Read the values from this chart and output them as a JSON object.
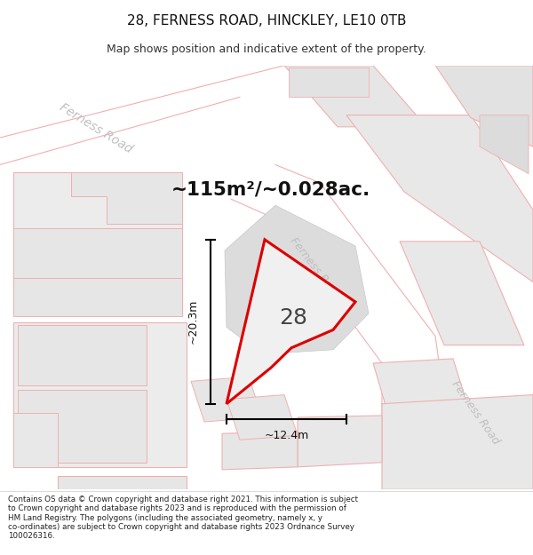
{
  "title": "28, FERNESS ROAD, HINCKLEY, LE10 0TB",
  "subtitle": "Map shows position and indicative extent of the property.",
  "area_label": "~115m²/~0.028ac.",
  "number_label": "28",
  "dim_vertical": "~20.3m",
  "dim_horizontal": "~12.4m",
  "road_label": "Ferness Road",
  "footer_text": "Contains OS data © Crown copyright and database right 2021. This information is subject to Crown copyright and database rights 2023 and is reproduced with the permission of HM Land Registry. The polygons (including the associated geometry, namely x, y co-ordinates) are subject to Crown copyright and database rights 2023 Ordnance Survey 100026316.",
  "bg_color": "#ffffff",
  "building_fill": "#e8e8e8",
  "building_outline": "#f0b0b0",
  "red_outline": "#dd0000",
  "prop_fill": "#e4e4e4"
}
